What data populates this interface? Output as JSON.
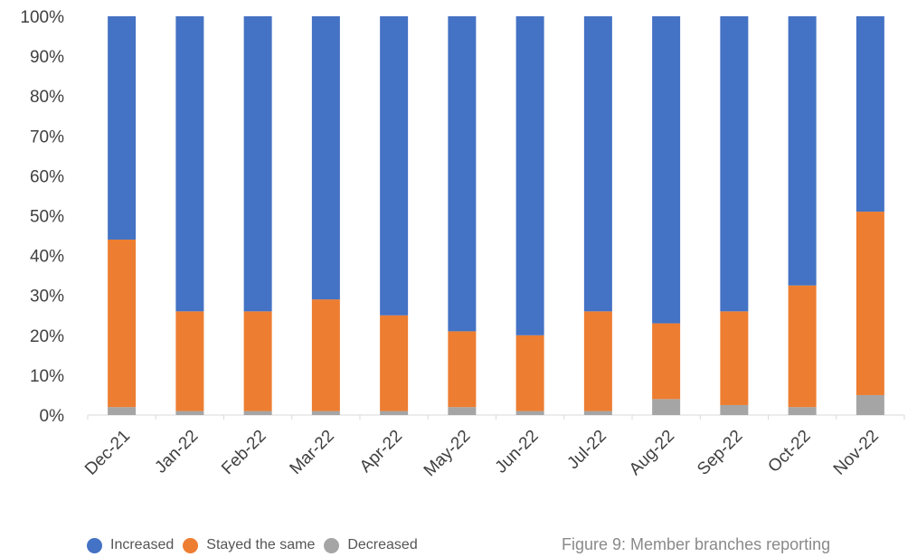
{
  "chart_data": {
    "type": "bar",
    "stacked": true,
    "percent": true,
    "categories": [
      "Dec-21",
      "Jan-22",
      "Feb-22",
      "Mar-22",
      "Apr-22",
      "May-22",
      "Jun-22",
      "Jul-22",
      "Aug-22",
      "Sep-22",
      "Oct-22",
      "Nov-22"
    ],
    "series": [
      {
        "name": "Decreased",
        "color": "#a5a5a5",
        "values": [
          2,
          1,
          1,
          1,
          1,
          2,
          1,
          1,
          4,
          2.5,
          2,
          5
        ]
      },
      {
        "name": "Stayed the same",
        "color": "#ed7d31",
        "values": [
          42,
          25,
          25,
          28,
          24,
          19,
          19,
          25,
          19,
          23.5,
          30.5,
          46
        ]
      },
      {
        "name": "Increased",
        "color": "#4472c4",
        "values": [
          56,
          74,
          74,
          71,
          75,
          79,
          80,
          74,
          77,
          74,
          67.5,
          49
        ]
      }
    ],
    "ylim": [
      0,
      100
    ],
    "yticks": [
      "0%",
      "10%",
      "20%",
      "30%",
      "40%",
      "50%",
      "60%",
      "70%",
      "80%",
      "90%",
      "100%"
    ],
    "legend_position": "bottom-left",
    "grid": false
  },
  "legend": [
    {
      "label": "Increased",
      "color": "#4472c4"
    },
    {
      "label": "Stayed the same",
      "color": "#ed7d31"
    },
    {
      "label": "Decreased",
      "color": "#a5a5a5"
    }
  ],
  "caption": "Figure 9: Member branches reporting"
}
